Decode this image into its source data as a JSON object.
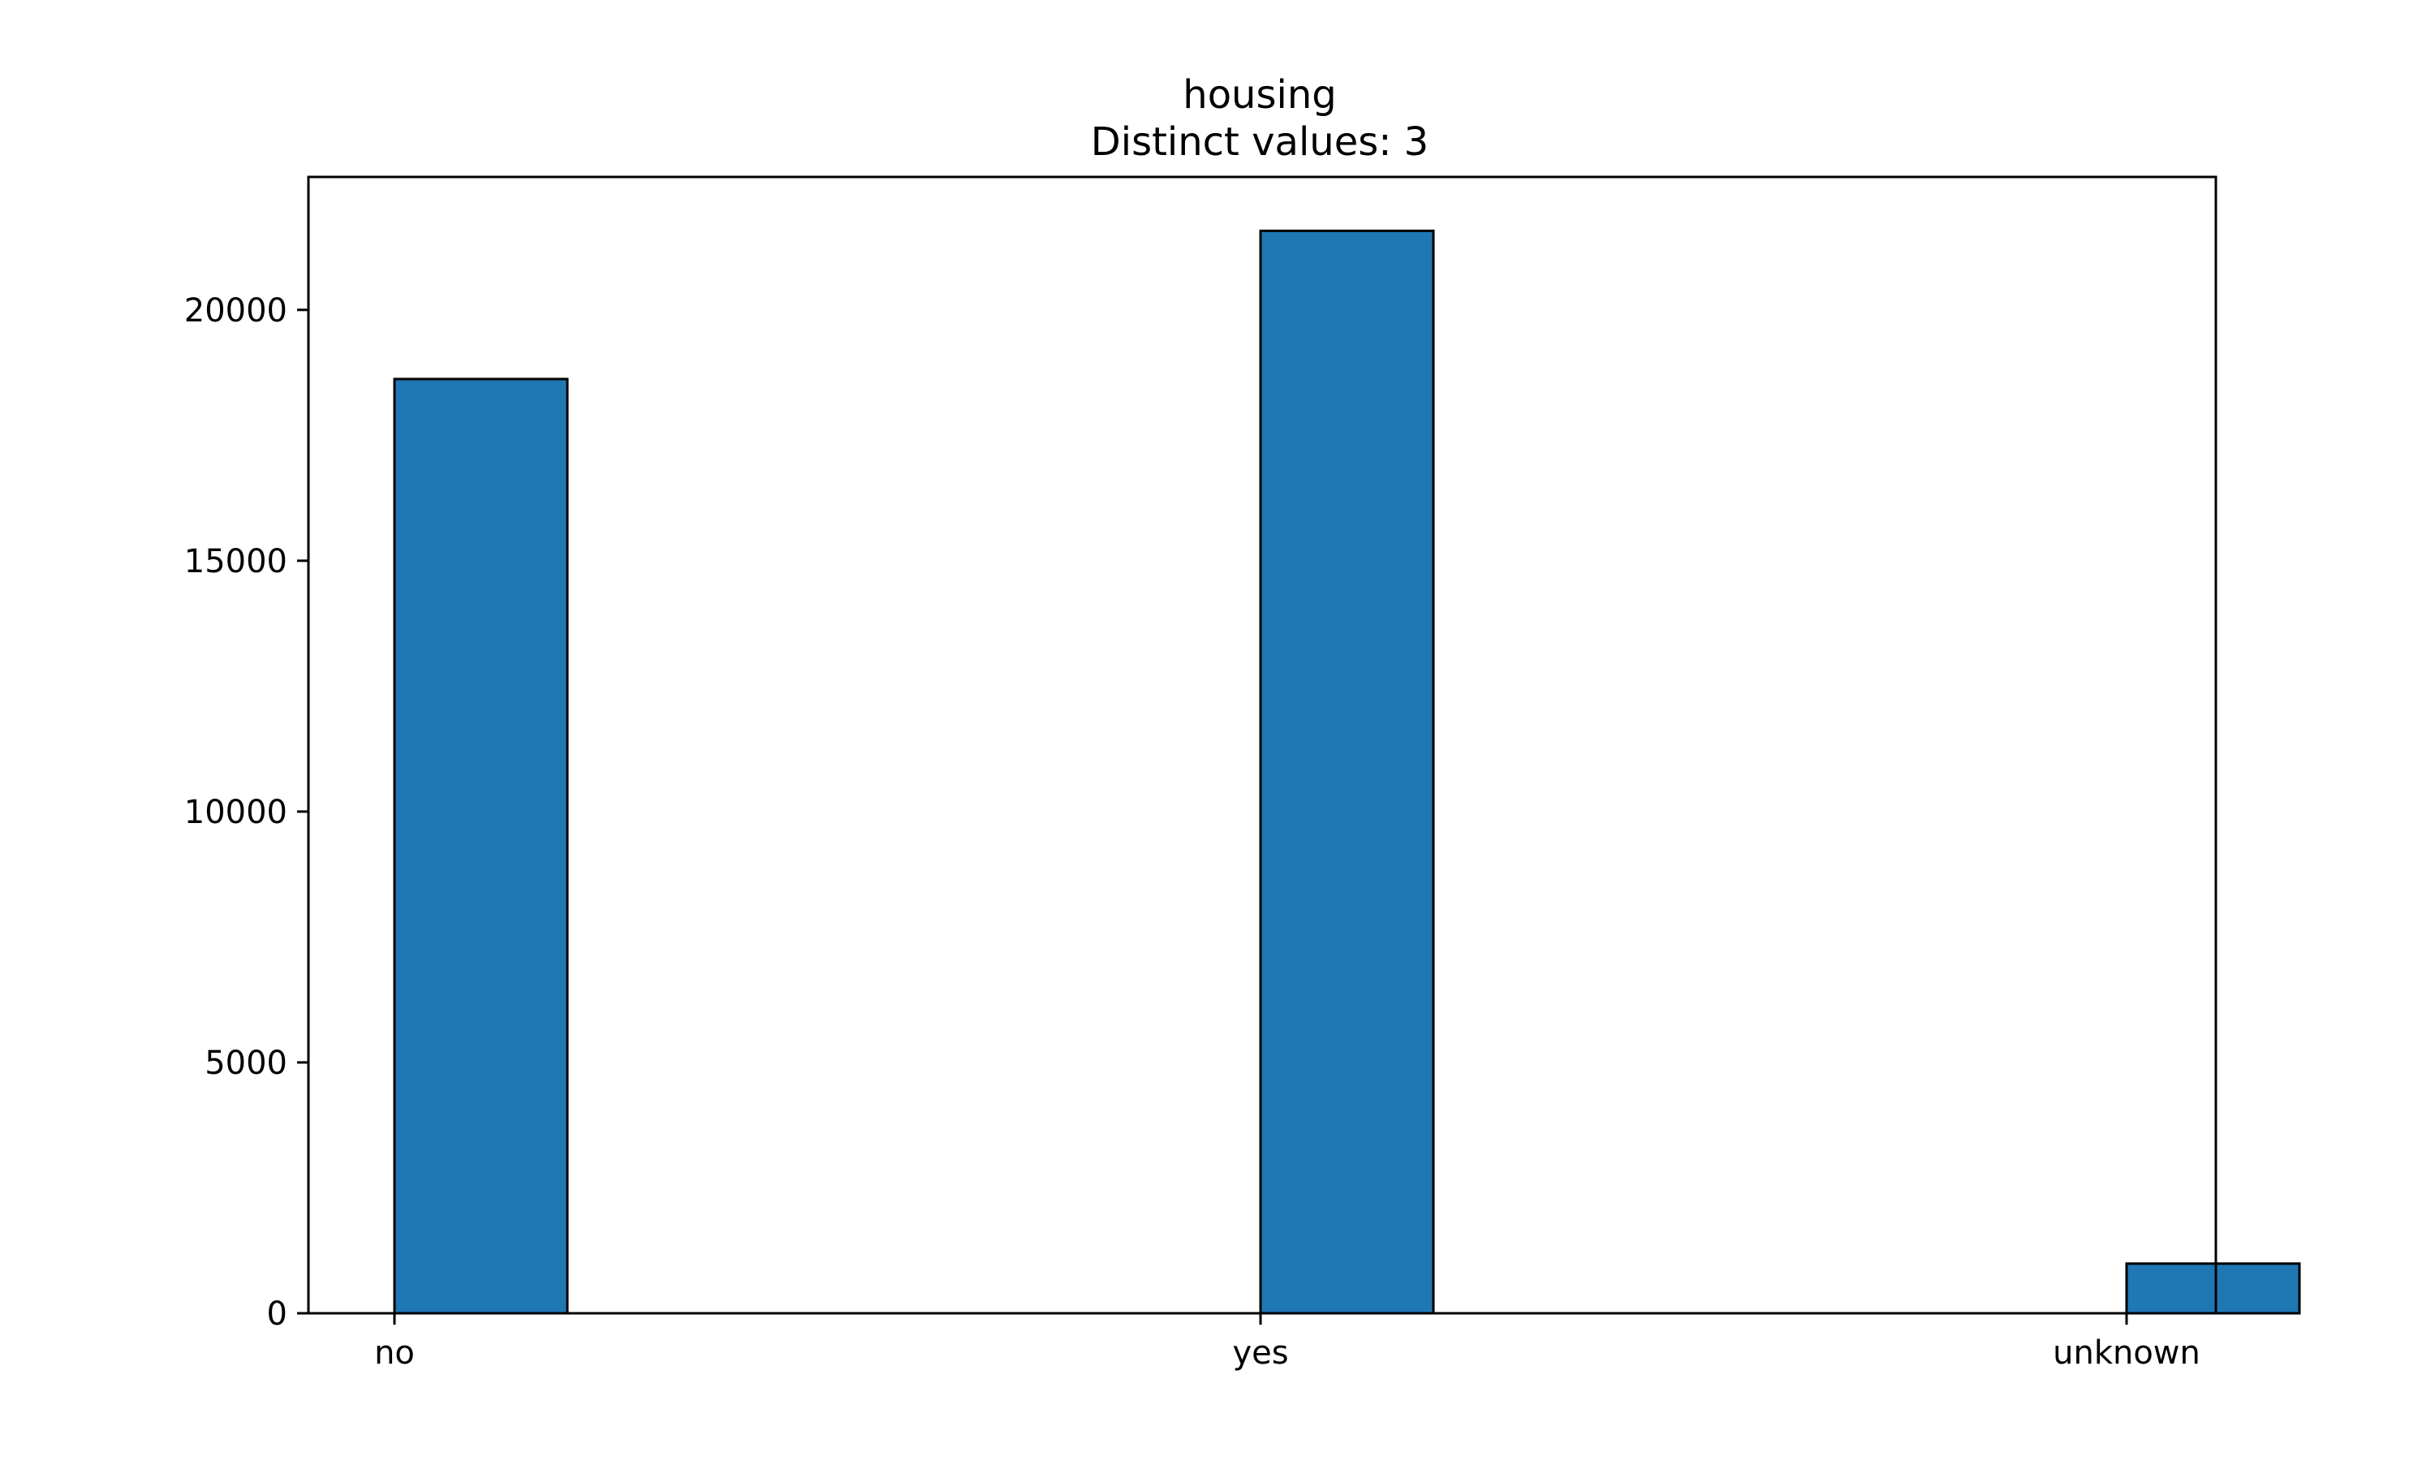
{
  "chart_data": {
    "type": "bar",
    "title": "housing",
    "subtitle": "Distinct values: 3",
    "xlabel": "",
    "ylabel": "",
    "categories": [
      "no",
      "yes",
      "unknown"
    ],
    "values": [
      18622,
      21576,
      990
    ],
    "ylim": [
      0,
      22650
    ],
    "yticks": [
      0,
      5000,
      10000,
      15000,
      20000
    ],
    "grid": false,
    "legend": "none",
    "bar_color": "#1f77b4",
    "edge_color": "#000000"
  }
}
